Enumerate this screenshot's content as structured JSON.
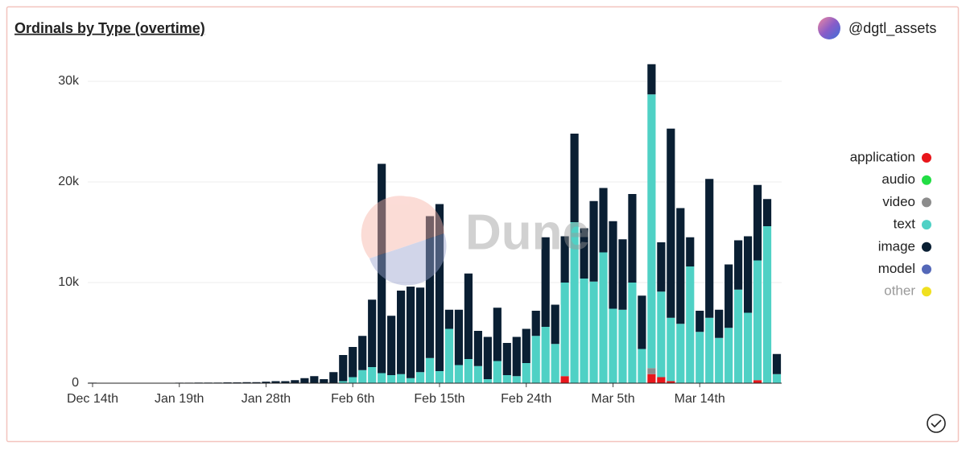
{
  "chart_data": {
    "type": "stacked_bar",
    "title": "Ordinals by Type (overtime)",
    "author": "@dgtl_assets",
    "watermark": "Dune",
    "legend": "right",
    "grid": true,
    "ylim": [
      0,
      32000
    ],
    "yticks": [
      0,
      {
        "value": 10000,
        "label": "10k"
      },
      {
        "value": 20000,
        "label": "20k"
      },
      {
        "value": 30000,
        "label": "30k"
      }
    ],
    "categories": [
      "Dec 14th",
      null,
      null,
      null,
      null,
      null,
      null,
      null,
      null,
      "Jan 19th",
      null,
      null,
      null,
      null,
      null,
      null,
      null,
      null,
      "Jan 28th",
      null,
      null,
      null,
      null,
      null,
      null,
      null,
      null,
      "Feb 6th",
      null,
      null,
      null,
      null,
      null,
      null,
      null,
      null,
      "Feb 15th",
      null,
      null,
      null,
      null,
      null,
      null,
      null,
      null,
      "Feb 24th",
      null,
      null,
      null,
      null,
      null,
      null,
      null,
      null,
      "Mar 5th",
      null,
      null,
      null,
      null,
      null,
      null,
      null,
      null,
      "Mar 14th",
      null,
      null,
      null,
      null,
      null,
      null,
      null,
      null
    ],
    "series": [
      {
        "name": "application",
        "color": "#e8161b",
        "values": [
          0,
          0,
          0,
          0,
          0,
          0,
          0,
          0,
          0,
          0,
          0,
          0,
          0,
          0,
          0,
          0,
          0,
          0,
          0,
          0,
          0,
          0,
          0,
          0,
          0,
          0,
          0,
          0,
          0,
          0,
          0,
          0,
          0,
          0,
          0,
          0,
          0,
          0,
          0,
          0,
          0,
          0,
          0,
          0,
          0,
          0,
          0,
          0,
          0,
          700,
          0,
          0,
          0,
          0,
          0,
          0,
          0,
          0,
          900,
          600,
          200,
          0,
          0,
          0,
          0,
          0,
          0,
          0,
          0,
          300,
          0,
          0
        ]
      },
      {
        "name": "audio",
        "color": "#22dd44",
        "values": [
          0,
          0,
          0,
          0,
          0,
          0,
          0,
          0,
          0,
          0,
          0,
          0,
          0,
          0,
          0,
          0,
          0,
          0,
          0,
          0,
          0,
          0,
          0,
          0,
          0,
          0,
          0,
          0,
          0,
          0,
          0,
          0,
          0,
          0,
          0,
          0,
          0,
          0,
          0,
          0,
          0,
          0,
          0,
          0,
          0,
          0,
          0,
          0,
          0,
          0,
          0,
          0,
          0,
          0,
          0,
          0,
          0,
          0,
          0,
          0,
          0,
          0,
          0,
          0,
          0,
          0,
          0,
          0,
          0,
          0,
          0,
          0
        ]
      },
      {
        "name": "video",
        "color": "#8c8c8c",
        "values": [
          0,
          0,
          0,
          0,
          0,
          0,
          0,
          0,
          0,
          0,
          0,
          0,
          0,
          0,
          0,
          0,
          0,
          0,
          0,
          0,
          0,
          0,
          0,
          0,
          0,
          0,
          0,
          0,
          0,
          0,
          0,
          0,
          0,
          0,
          0,
          0,
          0,
          0,
          0,
          0,
          0,
          0,
          0,
          0,
          0,
          0,
          0,
          0,
          0,
          0,
          0,
          0,
          0,
          0,
          0,
          0,
          0,
          0,
          600,
          0,
          0,
          0,
          0,
          0,
          0,
          0,
          0,
          0,
          0,
          0,
          0,
          0
        ]
      },
      {
        "name": "text",
        "color": "#4fd1c5",
        "values": [
          0,
          0,
          0,
          0,
          0,
          0,
          0,
          0,
          0,
          0,
          0,
          0,
          0,
          0,
          0,
          0,
          0,
          0,
          0,
          0,
          0,
          0,
          0,
          0,
          0,
          0,
          200,
          600,
          1300,
          1600,
          1000,
          800,
          900,
          500,
          1100,
          2500,
          1200,
          5400,
          1800,
          2400,
          1700,
          400,
          2200,
          800,
          700,
          2000,
          4700,
          5600,
          3900,
          9300,
          16000,
          10400,
          10100,
          13000,
          7400,
          7300,
          10000,
          3400,
          27200,
          8500,
          6300,
          5900,
          11600,
          5100,
          6500,
          4500,
          5500,
          9300,
          7000,
          11900,
          15600,
          900
        ]
      },
      {
        "name": "image",
        "color": "#0a1f33",
        "values": [
          50,
          30,
          30,
          30,
          30,
          40,
          40,
          40,
          40,
          50,
          50,
          60,
          60,
          60,
          80,
          80,
          100,
          100,
          150,
          200,
          200,
          300,
          500,
          700,
          400,
          1100,
          2600,
          3000,
          3400,
          6700,
          20800,
          5900,
          8300,
          9100,
          8400,
          14100,
          16600,
          1900,
          5500,
          8500,
          3500,
          4200,
          5300,
          3200,
          3900,
          3400,
          2500,
          8900,
          3900,
          4600,
          8800,
          5000,
          8000,
          6400,
          8700,
          7000,
          8800,
          5300,
          3000,
          4900,
          18800,
          11500,
          2900,
          2100,
          13800,
          2800,
          6300,
          4900,
          7600,
          7500,
          2700,
          2000
        ]
      },
      {
        "name": "model",
        "color": "#5468b8",
        "values": [
          0,
          0,
          0,
          0,
          0,
          0,
          0,
          0,
          0,
          0,
          0,
          0,
          0,
          0,
          0,
          0,
          0,
          0,
          0,
          0,
          0,
          0,
          0,
          0,
          0,
          0,
          0,
          0,
          0,
          0,
          0,
          0,
          0,
          0,
          0,
          0,
          0,
          0,
          0,
          0,
          0,
          0,
          0,
          0,
          0,
          0,
          0,
          0,
          0,
          0,
          0,
          0,
          0,
          0,
          0,
          0,
          0,
          0,
          0,
          0,
          0,
          0,
          0,
          0,
          0,
          0,
          0,
          0,
          0,
          0,
          0,
          0
        ]
      },
      {
        "name": "other",
        "color": "#f0e020",
        "values": [
          0,
          0,
          0,
          0,
          0,
          0,
          0,
          0,
          0,
          0,
          0,
          0,
          0,
          0,
          0,
          0,
          0,
          0,
          0,
          0,
          0,
          0,
          0,
          0,
          0,
          0,
          0,
          0,
          0,
          0,
          0,
          0,
          0,
          0,
          0,
          0,
          0,
          0,
          0,
          0,
          0,
          0,
          0,
          0,
          0,
          0,
          0,
          0,
          0,
          0,
          0,
          0,
          0,
          0,
          0,
          0,
          0,
          0,
          0,
          0,
          0,
          0,
          0,
          0,
          0,
          0,
          0,
          0,
          0,
          0,
          0,
          0
        ]
      }
    ]
  }
}
